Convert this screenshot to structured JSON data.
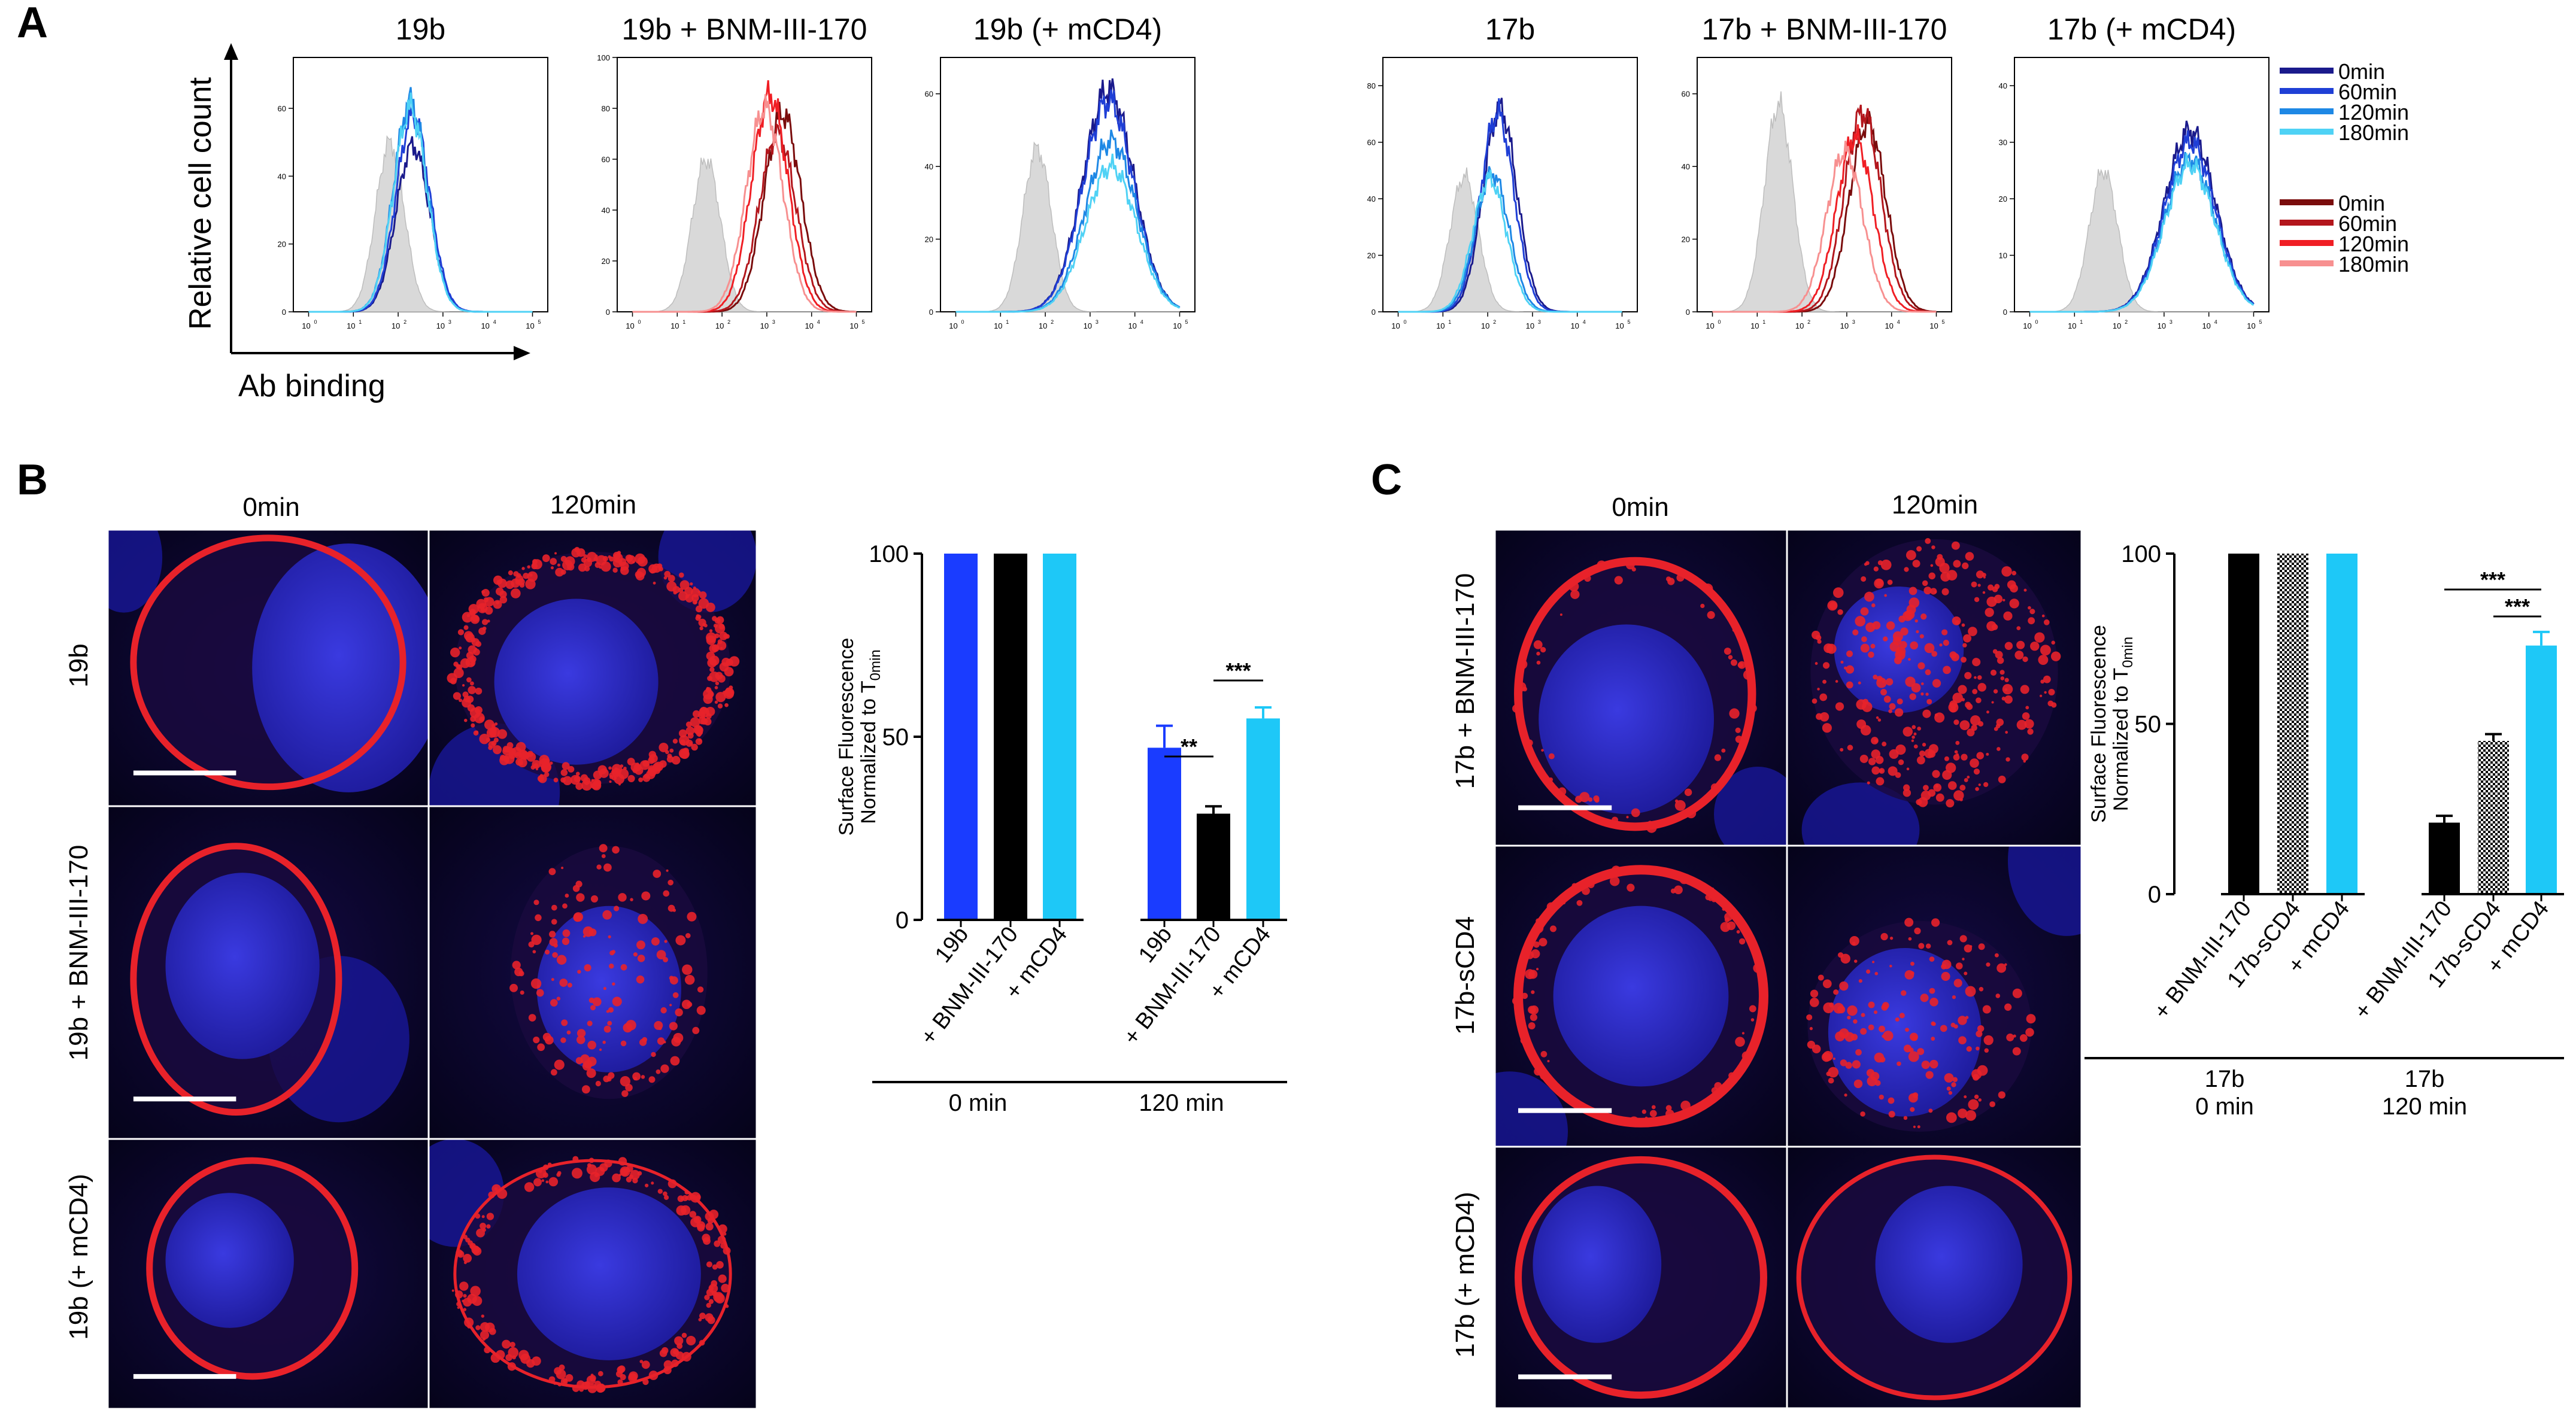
{
  "colors": {
    "blue_series": [
      "#1a1a8c",
      "#1f3fd6",
      "#1e88e5",
      "#4fd2f5"
    ],
    "red_series": [
      "#7a0c0c",
      "#b3161c",
      "#f01e24",
      "#f79090"
    ],
    "isotype_fill": "#d9d9d9",
    "bar_blue": "#1a3cff",
    "bar_black": "#000000",
    "bar_cyan": "#1ec8f7",
    "nucleus_blue": "#2a2ed0",
    "membrane_red": "#e8222a",
    "cell_bg": "#0a0528"
  },
  "panel_labels": {
    "a": "A",
    "b": "B",
    "c": "C"
  },
  "panel_a": {
    "titles": [
      "19b",
      "19b + BNM-III-170",
      "19b (+ mCD4)",
      "17b",
      "17b + BNM-III-170",
      "17b (+ mCD4)"
    ],
    "y_axis_title": "Relative cell count",
    "x_axis_title": "Ab binding",
    "x_ticks": [
      "10",
      "10",
      "10",
      "10",
      "10",
      "10"
    ],
    "x_tick_exps": [
      "0",
      "1",
      "2",
      "3",
      "4",
      "5"
    ],
    "y_ticks": [
      [
        "0",
        "20",
        "40",
        "60"
      ],
      [
        "0",
        "20",
        "40",
        "60",
        "80",
        "100"
      ],
      [
        "0",
        "20",
        "40",
        "60"
      ],
      [
        "0",
        "20",
        "40",
        "60",
        "80"
      ],
      [
        "0",
        "20",
        "40",
        "60"
      ],
      [
        "0",
        "10",
        "20",
        "30",
        "40"
      ]
    ],
    "legend_blue": [
      "0min",
      "60min",
      "120min",
      "180min"
    ],
    "legend_red": [
      "0min",
      "60min",
      "120min",
      "180min"
    ]
  },
  "panel_b": {
    "col_labels": [
      "0min",
      "120min"
    ],
    "row_labels": [
      "19b",
      "19b + BNM-III-170",
      "19b (+ mCD4)"
    ]
  },
  "panel_c": {
    "col_labels": [
      "0min",
      "120min"
    ],
    "row_labels": [
      "17b + BNM-III-170",
      "17b-sCD4",
      "17b (+ mCD4)"
    ]
  },
  "chart_data": [
    {
      "type": "line",
      "title": "19b",
      "xlabel": "Ab binding",
      "ylabel": "Relative cell count",
      "x_scale": "log",
      "xlim": [
        1,
        100000
      ],
      "ylim": [
        0,
        75
      ],
      "series": [
        {
          "name": "isotype",
          "peak_log": 1.9,
          "peak": 50
        },
        {
          "name": "0min",
          "peak_log": 2.35,
          "peak": 49
        },
        {
          "name": "60min",
          "peak_log": 2.35,
          "peak": 58
        },
        {
          "name": "120min",
          "peak_log": 2.3,
          "peak": 62
        },
        {
          "name": "180min",
          "peak_log": 2.3,
          "peak": 60
        }
      ]
    },
    {
      "type": "line",
      "title": "19b + BNM-III-170",
      "xlabel": "Ab binding",
      "ylabel": "Relative cell count",
      "x_scale": "log",
      "xlim": [
        1,
        100000
      ],
      "ylim": [
        0,
        100
      ],
      "series": [
        {
          "name": "isotype",
          "peak_log": 1.75,
          "peak": 60
        },
        {
          "name": "0min",
          "peak_log": 3.25,
          "peak": 78
        },
        {
          "name": "60min",
          "peak_log": 3.15,
          "peak": 70
        },
        {
          "name": "120min",
          "peak_log": 3.0,
          "peak": 85
        },
        {
          "name": "180min",
          "peak_log": 2.9,
          "peak": 80
        }
      ]
    },
    {
      "type": "line",
      "title": "19b (+ mCD4)",
      "xlabel": "Ab binding",
      "ylabel": "Relative cell count",
      "x_scale": "log",
      "xlim": [
        1,
        100000
      ],
      "ylim": [
        0,
        70
      ],
      "series": [
        {
          "name": "isotype",
          "peak_log": 1.9,
          "peak": 45
        },
        {
          "name": "0min",
          "peak_log": 3.3,
          "peak": 61
        },
        {
          "name": "60min",
          "peak_log": 3.3,
          "peak": 58
        },
        {
          "name": "120min",
          "peak_log": 3.35,
          "peak": 47
        },
        {
          "name": "180min",
          "peak_log": 3.35,
          "peak": 40
        }
      ]
    },
    {
      "type": "line",
      "title": "17b",
      "xlabel": "Ab binding",
      "ylabel": "Relative cell count",
      "x_scale": "log",
      "xlim": [
        1,
        100000
      ],
      "ylim": [
        0,
        90
      ],
      "series": [
        {
          "name": "isotype",
          "peak_log": 1.6,
          "peak": 48
        },
        {
          "name": "0min",
          "peak_log": 2.3,
          "peak": 72
        },
        {
          "name": "60min",
          "peak_log": 2.25,
          "peak": 70
        },
        {
          "name": "120min",
          "peak_log": 2.15,
          "peak": 49
        },
        {
          "name": "180min",
          "peak_log": 2.1,
          "peak": 47
        }
      ]
    },
    {
      "type": "line",
      "title": "17b + BNM-III-170",
      "xlabel": "Ab binding",
      "ylabel": "Relative cell count",
      "x_scale": "log",
      "xlim": [
        1,
        100000
      ],
      "ylim": [
        0,
        70
      ],
      "series": [
        {
          "name": "isotype",
          "peak_log": 1.6,
          "peak": 57
        },
        {
          "name": "0min",
          "peak_log": 3.35,
          "peak": 52
        },
        {
          "name": "60min",
          "peak_log": 3.25,
          "peak": 55
        },
        {
          "name": "120min",
          "peak_log": 3.1,
          "peak": 48
        },
        {
          "name": "180min",
          "peak_log": 2.9,
          "peak": 44
        }
      ]
    },
    {
      "type": "line",
      "title": "17b (+ mCD4)",
      "xlabel": "Ab binding",
      "ylabel": "Relative cell count",
      "x_scale": "log",
      "xlim": [
        1,
        100000
      ],
      "ylim": [
        0,
        45
      ],
      "series": [
        {
          "name": "isotype",
          "peak_log": 1.75,
          "peak": 25
        },
        {
          "name": "0min",
          "peak_log": 3.45,
          "peak": 32
        },
        {
          "name": "60min",
          "peak_log": 3.45,
          "peak": 30
        },
        {
          "name": "120min",
          "peak_log": 3.45,
          "peak": 27
        },
        {
          "name": "180min",
          "peak_log": 3.45,
          "peak": 26
        }
      ]
    },
    {
      "type": "bar",
      "ylabel_line1": "Surface Fluorescence",
      "ylabel_line2": "Normalized to T",
      "ylabel_sub": "0min",
      "ylim": [
        0,
        100
      ],
      "y_ticks": [
        "0",
        "50",
        "100"
      ],
      "categories": [
        "19b",
        "+ BNM-III-170",
        "+ mCD4",
        "19b",
        "+ BNM-III-170",
        "+ mCD4"
      ],
      "values": [
        100,
        100,
        100,
        47,
        29,
        55
      ],
      "errors": [
        0,
        0,
        0,
        6,
        2,
        3
      ],
      "fills": [
        "blue",
        "black",
        "cyan",
        "blue",
        "black",
        "cyan"
      ],
      "groups": [
        {
          "label": "0 min",
          "from": 0,
          "to": 2
        },
        {
          "label": "120 min",
          "from": 3,
          "to": 5
        }
      ],
      "significance": [
        {
          "from": 3,
          "to": 4,
          "label": "**"
        },
        {
          "from": 4,
          "to": 5,
          "label": "***"
        }
      ]
    },
    {
      "type": "bar",
      "ylabel_line1": "Surface Fluorescence",
      "ylabel_line2": "Normalized to T",
      "ylabel_sub": "0min",
      "ylim": [
        0,
        100
      ],
      "y_ticks": [
        "0",
        "50",
        "100"
      ],
      "categories": [
        "+ BNM-III-170",
        "17b-sCD4",
        "+ mCD4",
        "+ BNM-III-170",
        "17b-sCD4",
        "+ mCD4"
      ],
      "values": [
        100,
        100,
        100,
        21,
        45,
        73
      ],
      "errors": [
        0,
        0,
        0,
        2,
        2,
        4
      ],
      "fills": [
        "black",
        "check",
        "cyan",
        "black",
        "check",
        "cyan"
      ],
      "groups": [
        {
          "label": "17b",
          "label2": "0 min",
          "from": 0,
          "to": 2
        },
        {
          "label": "17b",
          "label2": "120 min",
          "from": 3,
          "to": 5
        }
      ],
      "significance": [
        {
          "from": 3,
          "to": 5,
          "label": "***"
        },
        {
          "from": 4,
          "to": 5,
          "label": "***"
        }
      ]
    }
  ]
}
